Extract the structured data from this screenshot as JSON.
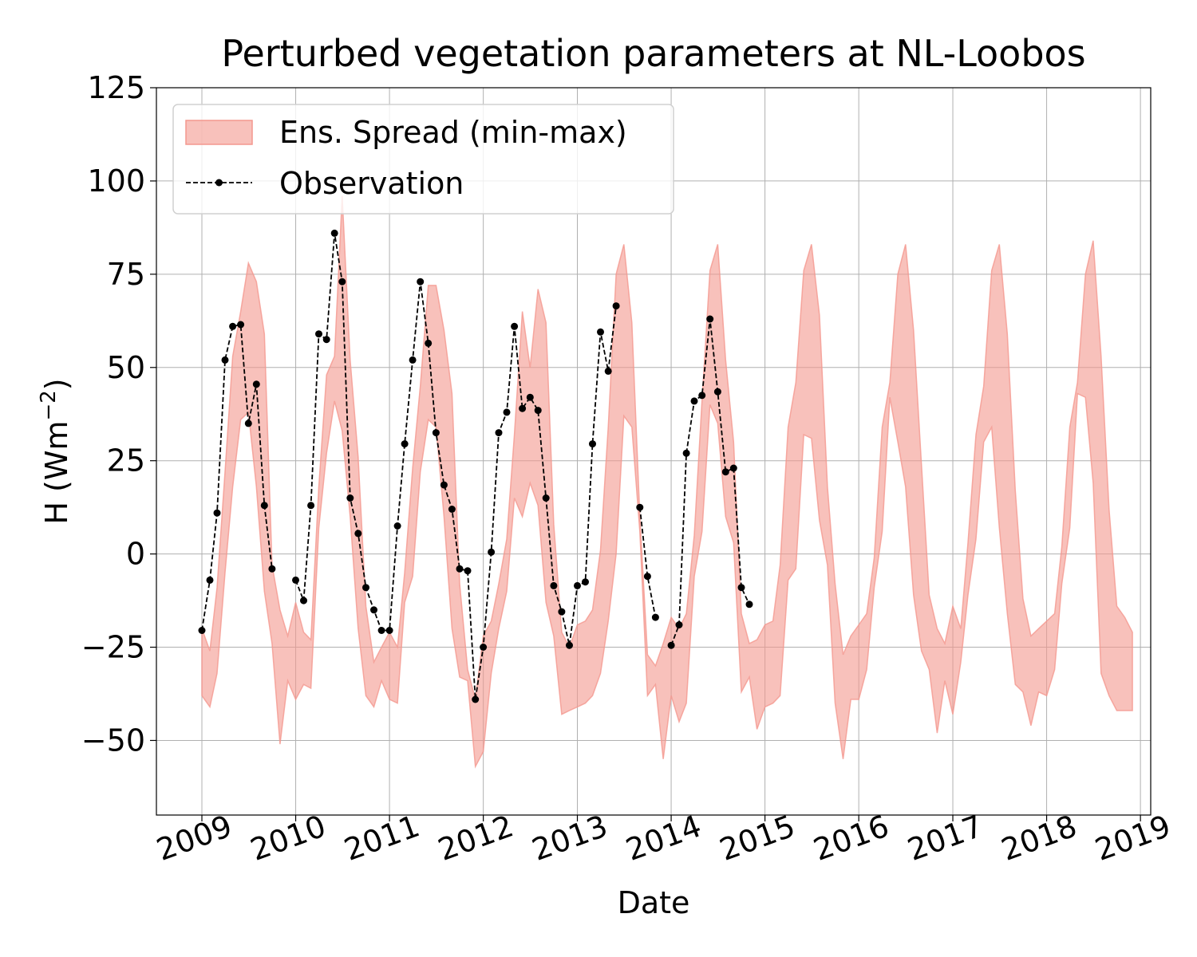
{
  "chart_data": {
    "type": "area",
    "title": "Perturbed vegetation parameters at NL-Loobos",
    "xlabel": "Date",
    "ylabel_main": "H  (Wm",
    "ylabel_sup": "−2",
    "ylabel_close": ")",
    "ylim": [
      -70,
      125
    ],
    "xlim": [
      "2008-07-08",
      "2019-02-10"
    ],
    "grid": true,
    "legend_position": "top-left",
    "colors": {
      "spread": "#f4978e",
      "observation": "#000000"
    },
    "y_ticks": [
      {
        "value": -50,
        "label": "−50"
      },
      {
        "value": -25,
        "label": "−25"
      },
      {
        "value": 0,
        "label": "0"
      },
      {
        "value": 25,
        "label": "25"
      },
      {
        "value": 50,
        "label": "50"
      },
      {
        "value": 75,
        "label": "75"
      },
      {
        "value": 100,
        "label": "100"
      },
      {
        "value": 125,
        "label": "125"
      }
    ],
    "x_ticks": [
      {
        "date": "2009-01-01",
        "label": "2009"
      },
      {
        "date": "2010-01-01",
        "label": "2010"
      },
      {
        "date": "2011-01-01",
        "label": "2011"
      },
      {
        "date": "2012-01-01",
        "label": "2012"
      },
      {
        "date": "2013-01-01",
        "label": "2013"
      },
      {
        "date": "2014-01-01",
        "label": "2014"
      },
      {
        "date": "2015-01-01",
        "label": "2015"
      },
      {
        "date": "2016-01-01",
        "label": "2016"
      },
      {
        "date": "2017-01-01",
        "label": "2017"
      },
      {
        "date": "2018-01-01",
        "label": "2018"
      },
      {
        "date": "2019-01-01",
        "label": "2019"
      }
    ],
    "series": [
      {
        "name": "Ens. Spread (min-max)",
        "kind": "band",
        "x": [
          "2009-01",
          "2009-02",
          "2009-03",
          "2009-04",
          "2009-05",
          "2009-06",
          "2009-07",
          "2009-08",
          "2009-09",
          "2009-10",
          "2009-11",
          "2009-12",
          "2010-01",
          "2010-02",
          "2010-03",
          "2010-04",
          "2010-05",
          "2010-06",
          "2010-07",
          "2010-08",
          "2010-09",
          "2010-10",
          "2010-11",
          "2010-12",
          "2011-01",
          "2011-02",
          "2011-03",
          "2011-04",
          "2011-05",
          "2011-06",
          "2011-07",
          "2011-08",
          "2011-09",
          "2011-10",
          "2011-11",
          "2011-12",
          "2012-01",
          "2012-02",
          "2012-03",
          "2012-04",
          "2012-05",
          "2012-06",
          "2012-07",
          "2012-08",
          "2012-09",
          "2012-10",
          "2012-11",
          "2012-12",
          "2013-01",
          "2013-02",
          "2013-03",
          "2013-04",
          "2013-05",
          "2013-06",
          "2013-07",
          "2013-08",
          "2013-09",
          "2013-10",
          "2013-11",
          "2013-12",
          "2014-01",
          "2014-02",
          "2014-03",
          "2014-04",
          "2014-05",
          "2014-06",
          "2014-07",
          "2014-08",
          "2014-09",
          "2014-10",
          "2014-11",
          "2014-12",
          "2015-01",
          "2015-02",
          "2015-03",
          "2015-04",
          "2015-05",
          "2015-06",
          "2015-07",
          "2015-08",
          "2015-09",
          "2015-10",
          "2015-11",
          "2015-12",
          "2016-01",
          "2016-02",
          "2016-03",
          "2016-04",
          "2016-05",
          "2016-06",
          "2016-07",
          "2016-08",
          "2016-09",
          "2016-10",
          "2016-11",
          "2016-12",
          "2017-01",
          "2017-02",
          "2017-03",
          "2017-04",
          "2017-05",
          "2017-06",
          "2017-07",
          "2017-08",
          "2017-09",
          "2017-10",
          "2017-11",
          "2017-12",
          "2018-01",
          "2018-02",
          "2018-03",
          "2018-04",
          "2018-05",
          "2018-06",
          "2018-07",
          "2018-08",
          "2018-09",
          "2018-10",
          "2018-11",
          "2018-12"
        ],
        "min": [
          -38,
          -41,
          -32,
          -5,
          18,
          36,
          38,
          18,
          -10,
          -24,
          -51,
          -34,
          -39,
          -35,
          -36,
          7,
          27,
          41,
          33,
          10,
          -20,
          -38,
          -41,
          -34,
          -39,
          -40,
          -13,
          -6,
          22,
          36,
          34,
          10,
          -20,
          -33,
          -34,
          -57,
          -53,
          -32,
          -20,
          -10,
          15,
          10,
          19,
          13,
          -13,
          -22,
          -43,
          -42,
          -41,
          -40,
          -38,
          -32,
          -18,
          0,
          37,
          34,
          6,
          -38,
          -35,
          -55,
          -38,
          -45,
          -40,
          -6,
          6,
          40,
          35,
          10,
          3,
          -37,
          -33,
          -47,
          -41,
          -40,
          -38,
          -7,
          -4,
          32,
          31,
          9,
          -3,
          -40,
          -55,
          -39,
          -39,
          -31,
          -9,
          6,
          42,
          30,
          18,
          -11,
          -26,
          -31,
          -48,
          -34,
          -43,
          -29,
          -11,
          4,
          30,
          34,
          7,
          -16,
          -35,
          -37,
          -46,
          -37,
          -38,
          -31,
          -8,
          7,
          43,
          42,
          19,
          -32,
          -38,
          -42,
          -42,
          -42
        ],
        "max": [
          -20,
          -26,
          -9,
          22,
          53,
          65,
          78,
          73,
          59,
          -3,
          -15,
          -22,
          -13,
          -21,
          -23,
          18,
          48,
          53,
          96,
          52,
          26,
          -14,
          -29,
          -25,
          -21,
          -25,
          -5,
          23,
          45,
          72,
          72,
          60,
          43,
          -8,
          -31,
          -39,
          -22,
          -18,
          -8,
          4,
          32,
          65,
          50,
          71,
          62,
          8,
          -21,
          -25,
          -19,
          -18,
          -15,
          1,
          34,
          75,
          83,
          62,
          10,
          -27,
          -30,
          -24,
          -17,
          -20,
          -16,
          5,
          41,
          76,
          83,
          52,
          30,
          -16,
          -24,
          -23,
          -19,
          -18,
          -3,
          34,
          46,
          76,
          83,
          64,
          18,
          -8,
          -27,
          -22,
          -19,
          -16,
          -1,
          34,
          46,
          75,
          83,
          60,
          24,
          -11,
          -20,
          -24,
          -14,
          -20,
          3,
          32,
          45,
          76,
          83,
          59,
          17,
          -12,
          -22,
          -20,
          -18,
          -16,
          2,
          34,
          46,
          75,
          84,
          53,
          12,
          -14,
          -17,
          -21
        ]
      },
      {
        "name": "Observation",
        "kind": "line",
        "segments": [
          {
            "x": [
              "2009-01",
              "2009-02",
              "2009-03",
              "2009-04",
              "2009-05",
              "2009-06",
              "2009-07",
              "2009-08",
              "2009-09",
              "2009-10"
            ],
            "y": [
              -20.5,
              -7,
              11,
              52,
              61,
              61.5,
              35,
              45.5,
              13,
              -4
            ]
          },
          {
            "x": [
              "2010-01",
              "2010-02",
              "2010-03",
              "2010-04",
              "2010-05",
              "2010-06",
              "2010-07",
              "2010-08",
              "2010-09",
              "2010-10",
              "2010-11",
              "2010-12",
              "2011-01",
              "2011-02",
              "2011-03",
              "2011-04",
              "2011-05",
              "2011-06",
              "2011-07",
              "2011-08",
              "2011-09",
              "2011-10",
              "2011-11",
              "2011-12",
              "2012-01",
              "2012-02",
              "2012-03",
              "2012-04",
              "2012-05",
              "2012-06",
              "2012-07",
              "2012-08",
              "2012-09",
              "2012-10",
              "2012-11",
              "2012-12",
              "2013-01",
              "2013-02",
              "2013-03",
              "2013-04",
              "2013-05",
              "2013-06"
            ],
            "y": [
              -7,
              -12.5,
              13,
              59,
              57.5,
              86,
              73,
              15,
              5.5,
              -9,
              -15,
              -20.5,
              -20.5,
              7.5,
              29.5,
              52,
              73,
              56.5,
              32.5,
              18.5,
              12,
              -4,
              -4.5,
              -39,
              -25,
              0.5,
              32.5,
              38,
              61,
              39,
              42,
              38.5,
              15,
              -8.5,
              -15.5,
              -24.5,
              -8.5,
              -7.5,
              29.5,
              59.5,
              49,
              66.5
            ]
          },
          {
            "x": [
              "2013-09",
              "2013-10",
              "2013-11"
            ],
            "y": [
              12.5,
              -6,
              -17
            ]
          },
          {
            "x": [
              "2014-01",
              "2014-02",
              "2014-03",
              "2014-04",
              "2014-05",
              "2014-06",
              "2014-07",
              "2014-08",
              "2014-09",
              "2014-10",
              "2014-11"
            ],
            "y": [
              -24.5,
              -19,
              27,
              41,
              42.5,
              63,
              43.5,
              22,
              23,
              -9,
              -13.5
            ]
          }
        ]
      }
    ]
  }
}
